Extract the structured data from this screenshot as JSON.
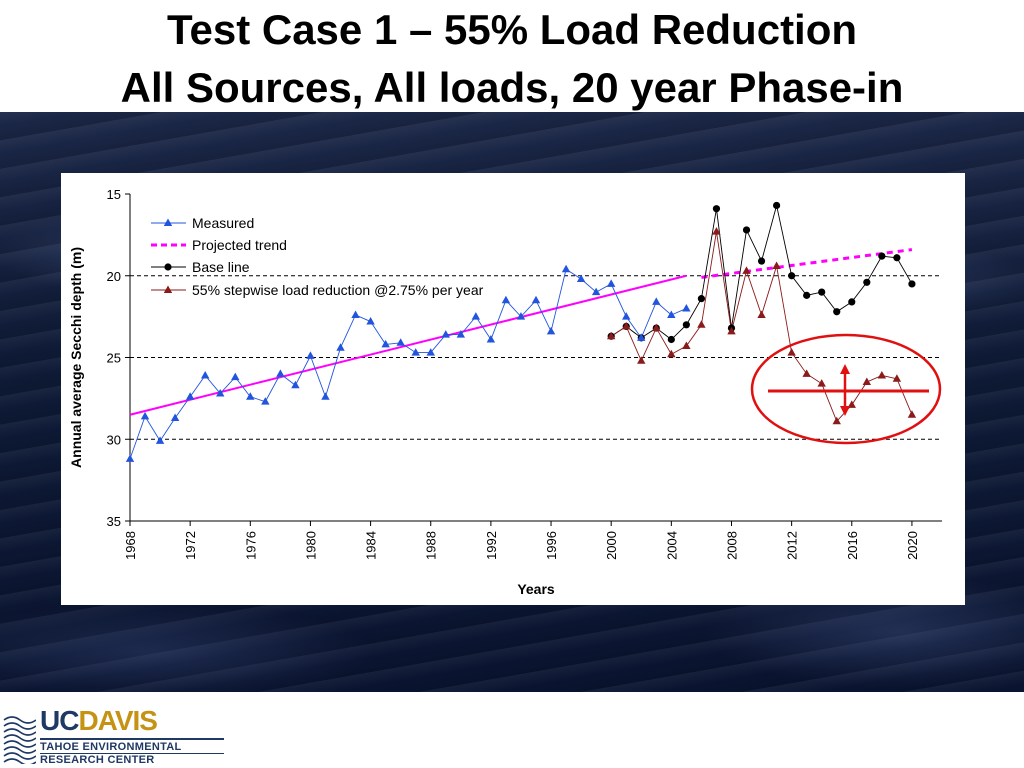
{
  "slide": {
    "title_line1": "Test Case 1 – 55% Load Reduction",
    "title_line2": "All Sources, All loads, 20 year Phase-in"
  },
  "logo": {
    "uc": "UC",
    "davis": "DAVIS",
    "line1": "TAHOE ENVIRONMENTAL",
    "line2": "RESEARCH CENTER"
  },
  "chart_data": {
    "type": "line",
    "xlabel": "Years",
    "ylabel": "Annual average Secchi depth (m)",
    "xlim": [
      1968,
      2022
    ],
    "ylim": [
      35,
      15
    ],
    "y_inverted": true,
    "xticks": [
      1968,
      1972,
      1976,
      1980,
      1984,
      1988,
      1992,
      1996,
      2000,
      2004,
      2008,
      2012,
      2016,
      2020
    ],
    "yticks": [
      15,
      20,
      25,
      30,
      35
    ],
    "reference_lines_y": [
      20,
      25,
      30
    ],
    "legend_position": "top-left",
    "colors": {
      "measured": "#2255dd",
      "projected": "#ff00ff",
      "baseline": "#000000",
      "reduction": "#8b1a1a",
      "highlight": "#e01010"
    },
    "series": [
      {
        "name": "Measured",
        "x": [
          1968,
          1969,
          1970,
          1971,
          1972,
          1973,
          1974,
          1975,
          1976,
          1977,
          1978,
          1979,
          1980,
          1981,
          1982,
          1983,
          1984,
          1985,
          1986,
          1987,
          1988,
          1989,
          1990,
          1991,
          1992,
          1993,
          1994,
          1995,
          1996,
          1997,
          1998,
          1999,
          2000,
          2001,
          2002,
          2003,
          2004,
          2005
        ],
        "y": [
          31.2,
          28.6,
          30.1,
          28.7,
          27.4,
          26.1,
          27.2,
          26.2,
          27.4,
          27.7,
          26.0,
          26.7,
          24.9,
          27.4,
          24.4,
          22.4,
          22.8,
          24.2,
          24.1,
          24.7,
          24.7,
          23.6,
          23.6,
          22.5,
          23.9,
          21.5,
          22.5,
          21.5,
          23.4,
          19.6,
          20.2,
          21.0,
          20.5,
          22.5,
          23.8,
          21.6,
          22.4,
          22.0
        ],
        "marker": "triangle",
        "color": "#2255dd"
      },
      {
        "name": "Projected trend",
        "x": [
          1968,
          2005,
          2006,
          2020
        ],
        "y": [
          28.5,
          20.0,
          20.1,
          18.4
        ],
        "style": "solid-then-dashed",
        "color": "#ff00ff"
      },
      {
        "name": "Base line",
        "x": [
          2000,
          2001,
          2002,
          2003,
          2004,
          2005,
          2006,
          2007,
          2008,
          2009,
          2010,
          2011,
          2012,
          2013,
          2014,
          2015,
          2016,
          2017,
          2018,
          2019,
          2020
        ],
        "y": [
          23.7,
          23.1,
          23.8,
          23.2,
          23.9,
          23.0,
          21.4,
          15.9,
          23.2,
          17.2,
          19.1,
          15.7,
          20.0,
          21.2,
          21.0,
          22.2,
          21.6,
          20.4,
          18.8,
          18.9,
          20.5
        ],
        "marker": "circle",
        "color": "#000000"
      },
      {
        "name": "55% stepwise load reduction @2.75% per year",
        "x": [
          2000,
          2001,
          2002,
          2003,
          2004,
          2005,
          2006,
          2007,
          2008,
          2009,
          2010,
          2011,
          2012,
          2013,
          2014,
          2015,
          2016,
          2017,
          2018,
          2019,
          2020
        ],
        "y": [
          23.7,
          23.1,
          25.2,
          23.2,
          24.8,
          24.3,
          23.0,
          17.3,
          23.4,
          19.7,
          22.4,
          19.4,
          24.7,
          26.0,
          26.6,
          28.9,
          27.9,
          26.5,
          26.1,
          26.3,
          28.5
        ],
        "marker": "triangle",
        "color": "#8b1a1a"
      }
    ]
  }
}
